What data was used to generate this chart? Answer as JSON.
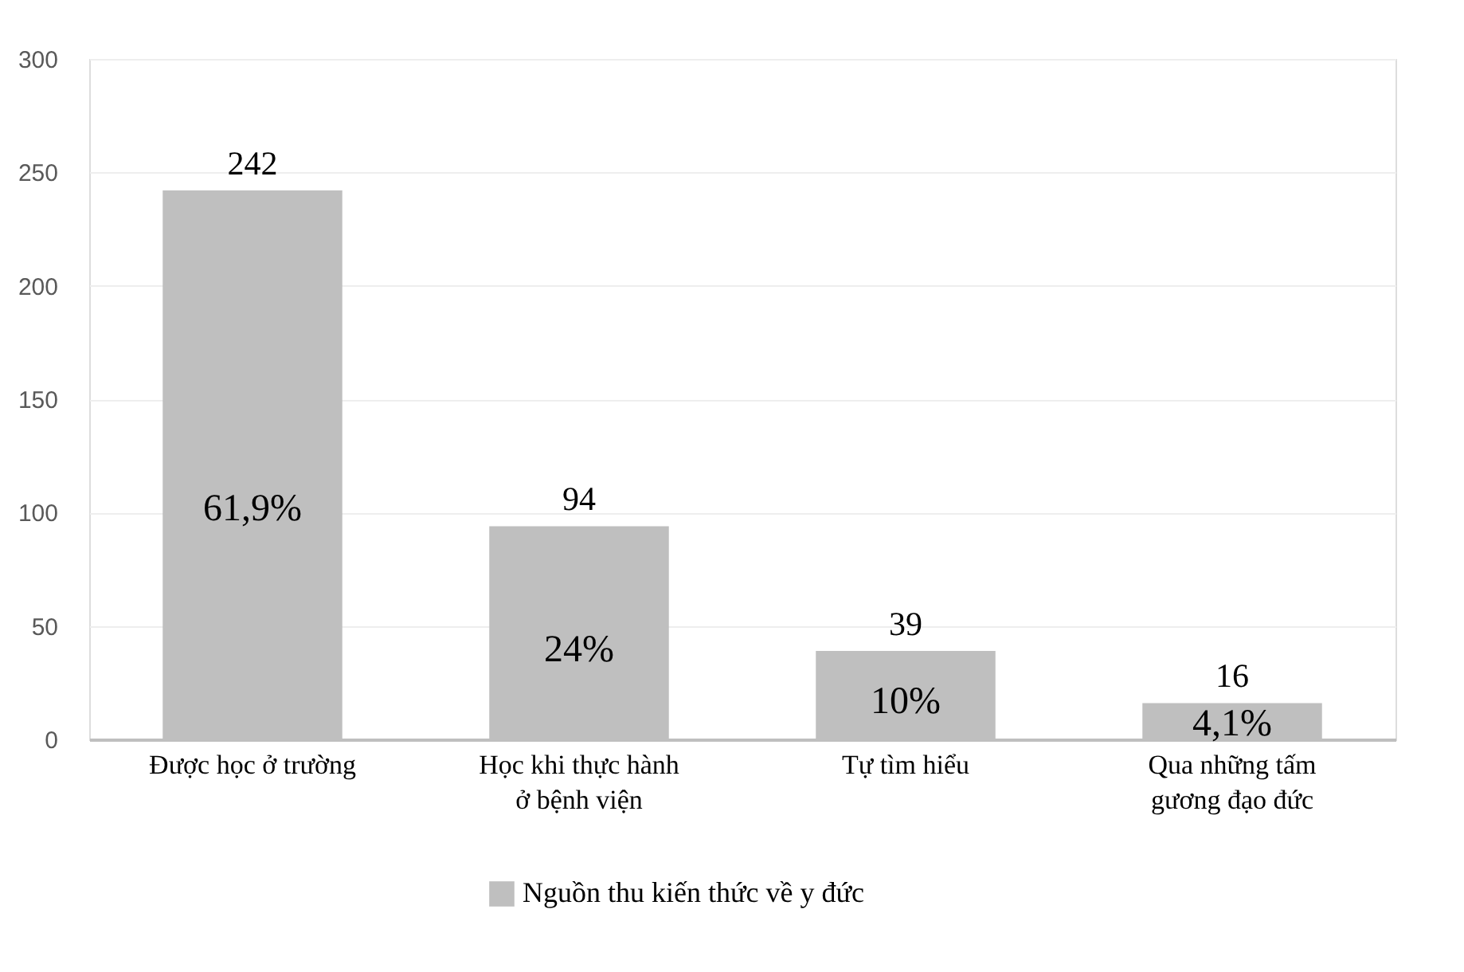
{
  "chart_data": {
    "type": "bar",
    "categories": [
      "Được học ở trường",
      "Học khi thực hành ở bệnh viện",
      "Tự tìm hiểu",
      "Qua những tấm gương đạo đức"
    ],
    "series": [
      {
        "name": "Nguồn thu kiến thức về y đức",
        "color": "#bfbfbf",
        "values": [
          242,
          94,
          39,
          16
        ]
      }
    ],
    "ylim": [
      0,
      300
    ],
    "yticks": [
      0,
      50,
      100,
      150,
      200,
      250,
      300
    ],
    "grid": "y",
    "legend": "bottom",
    "data_labels": true,
    "annotations": [
      "61,9%",
      "24%",
      "10%",
      "4,1%"
    ]
  }
}
